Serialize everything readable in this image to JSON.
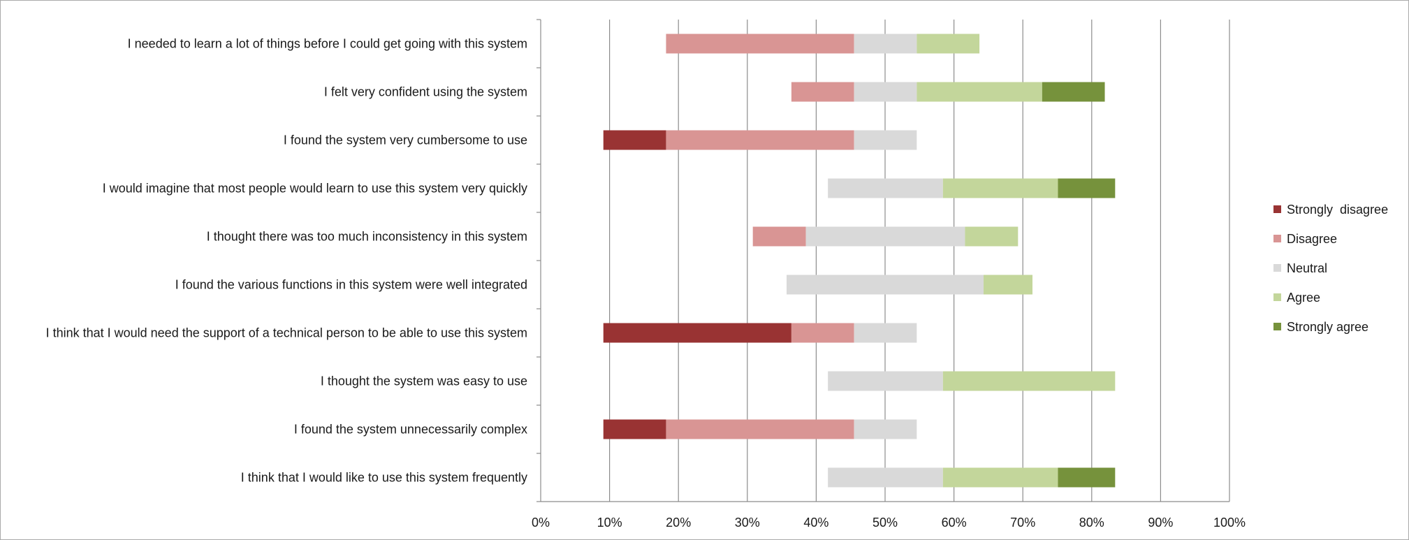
{
  "chart_data": {
    "type": "bar",
    "orientation": "horizontal",
    "stacked": true,
    "title": "",
    "xlabel": "",
    "ylabel": "",
    "xlim": [
      0,
      100
    ],
    "x_ticks": [
      "0%",
      "10%",
      "20%",
      "30%",
      "40%",
      "50%",
      "60%",
      "70%",
      "80%",
      "90%",
      "100%"
    ],
    "grid": true,
    "legend_position": "right",
    "categories": [
      "I needed to learn a lot of things before I could get going with this system",
      "I felt very confident using the system",
      "I found the system very cumbersome to use",
      "I would imagine that most people would learn to use this system very quickly",
      "I thought there was too much inconsistency in this system",
      "I found the various functions in this system were well integrated",
      "I think that I would need the support of a technical person to be able to use this system",
      "I thought the system was easy to use",
      "I found the system unnecessarily complex",
      "I think that I would like to use this system frequently"
    ],
    "offsets": [
      18.2,
      36.4,
      9.1,
      41.7,
      30.8,
      35.7,
      9.1,
      41.7,
      9.1,
      41.7
    ],
    "series": [
      {
        "name": "Strongly  disagree",
        "color": "#993333",
        "values": [
          0,
          0,
          9.1,
          0,
          0,
          0,
          27.3,
          0,
          9.1,
          0
        ]
      },
      {
        "name": "Disagree",
        "color": "#d99594",
        "values": [
          27.3,
          9.1,
          27.3,
          0,
          7.7,
          0,
          9.1,
          0,
          27.3,
          0
        ]
      },
      {
        "name": "Neutral",
        "color": "#d9d9d9",
        "values": [
          9.1,
          9.1,
          9.1,
          16.7,
          23.1,
          28.6,
          9.1,
          16.7,
          9.1,
          16.7
        ]
      },
      {
        "name": "Agree",
        "color": "#c3d69b",
        "values": [
          9.1,
          18.2,
          0,
          16.7,
          7.7,
          7.1,
          0,
          25.0,
          0,
          16.7
        ]
      },
      {
        "name": "Strongly agree",
        "color": "#76923c",
        "values": [
          0,
          9.1,
          0,
          8.3,
          0,
          0,
          0,
          0,
          0,
          8.3
        ]
      }
    ]
  }
}
